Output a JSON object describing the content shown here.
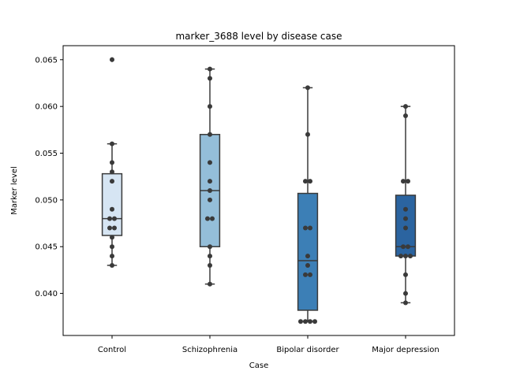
{
  "chart_data": {
    "type": "box",
    "title": "marker_3688 level by disease case",
    "xlabel": "Case",
    "ylabel": "Marker level",
    "ylim": [
      0.0355,
      0.0665
    ],
    "yticks": [
      0.04,
      0.045,
      0.05,
      0.055,
      0.06,
      0.065
    ],
    "ytick_labels": [
      "0.040",
      "0.045",
      "0.050",
      "0.055",
      "0.060",
      "0.065"
    ],
    "grid": false,
    "categories": [
      "Control",
      "Schizophrenia",
      "Bipolar disorder",
      "Major depression"
    ],
    "colors": [
      "#d6e5f3",
      "#94bed9",
      "#3c7fb6",
      "#2b64a0"
    ],
    "boxes": [
      {
        "q1": 0.0462,
        "median": 0.048,
        "q3": 0.0528,
        "whisker_low": 0.043,
        "whisker_high": 0.056,
        "outliers": [
          0.065
        ]
      },
      {
        "q1": 0.045,
        "median": 0.051,
        "q3": 0.057,
        "whisker_low": 0.041,
        "whisker_high": 0.064,
        "outliers": []
      },
      {
        "q1": 0.0382,
        "median": 0.0435,
        "q3": 0.0507,
        "whisker_low": 0.037,
        "whisker_high": 0.062,
        "outliers": []
      },
      {
        "q1": 0.044,
        "median": 0.045,
        "q3": 0.0505,
        "whisker_low": 0.039,
        "whisker_high": 0.06,
        "outliers": []
      }
    ],
    "points": [
      [
        0.065,
        0.056,
        0.054,
        0.053,
        0.052,
        0.049,
        0.048,
        0.048,
        0.047,
        0.047,
        0.046,
        0.045,
        0.044,
        0.043
      ],
      [
        0.064,
        0.063,
        0.06,
        0.057,
        0.054,
        0.052,
        0.051,
        0.05,
        0.048,
        0.048,
        0.045,
        0.044,
        0.043,
        0.041
      ],
      [
        0.062,
        0.057,
        0.052,
        0.052,
        0.047,
        0.047,
        0.044,
        0.043,
        0.042,
        0.042,
        0.037,
        0.037,
        0.037,
        0.037
      ],
      [
        0.06,
        0.059,
        0.052,
        0.052,
        0.049,
        0.048,
        0.047,
        0.045,
        0.045,
        0.044,
        0.044,
        0.044,
        0.042,
        0.04,
        0.039
      ]
    ]
  }
}
